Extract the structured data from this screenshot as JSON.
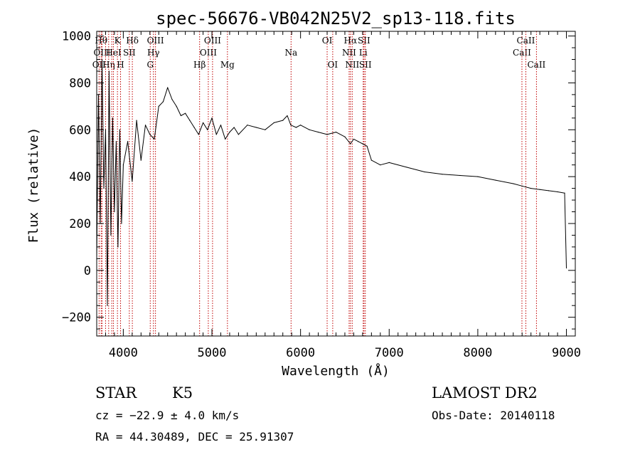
{
  "chart_data": {
    "type": "line",
    "title": "spec-56676-VB042N25V2_sp13-118.fits",
    "xlabel": "Wavelength (Å)",
    "ylabel": "Flux (relative)",
    "xlim": [
      3700,
      9100
    ],
    "ylim": [
      -280,
      1020
    ],
    "xticks": [
      4000,
      5000,
      6000,
      7000,
      8000,
      9000
    ],
    "yticks": [
      -200,
      0,
      200,
      400,
      600,
      800,
      1000
    ],
    "xtick_labels": [
      "4000",
      "5000",
      "6000",
      "7000",
      "8000",
      "9000"
    ],
    "ytick_labels": [
      "−200",
      "0",
      "200",
      "400",
      "600",
      "800",
      "1000"
    ],
    "grid": false,
    "series": [
      {
        "x": [
          3700,
          3720,
          3740,
          3760,
          3780,
          3800,
          3820,
          3840,
          3860,
          3880,
          3900,
          3920,
          3940,
          3960,
          3980,
          4000,
          4050,
          4100,
          4150,
          4200,
          4250,
          4300,
          4350,
          4400,
          4450,
          4500,
          4550,
          4600,
          4650,
          4700,
          4750,
          4800,
          4850,
          4900,
          4950,
          5000,
          5050,
          5100,
          5150,
          5200,
          5250,
          5300,
          5400,
          5500,
          5600,
          5700,
          5800,
          5850,
          5890,
          5950,
          6000,
          6100,
          6200,
          6300,
          6400,
          6500,
          6563,
          6600,
          6650,
          6700,
          6750,
          6800,
          6900,
          7000,
          7200,
          7400,
          7600,
          7800,
          8000,
          8200,
          8400,
          8500,
          8600,
          8700,
          8800,
          8900,
          8980,
          9000
        ],
        "y": [
          50,
          750,
          200,
          900,
          350,
          600,
          -150,
          850,
          150,
          650,
          250,
          550,
          100,
          600,
          200,
          450,
          550,
          380,
          640,
          470,
          620,
          580,
          560,
          700,
          720,
          780,
          730,
          700,
          660,
          670,
          640,
          610,
          580,
          630,
          600,
          650,
          580,
          620,
          560,
          590,
          610,
          580,
          620,
          610,
          600,
          630,
          640,
          660,
          620,
          610,
          620,
          600,
          590,
          580,
          590,
          570,
          540,
          560,
          550,
          540,
          530,
          470,
          450,
          460,
          440,
          420,
          410,
          405,
          400,
          385,
          370,
          360,
          350,
          345,
          340,
          335,
          330,
          10
        ]
      }
    ],
    "line_markers": [
      {
        "wavelength": 3727,
        "label": "OII",
        "row": 3
      },
      {
        "wavelength": 3750,
        "label": "Hθ",
        "row": 1
      },
      {
        "wavelength": 3760,
        "label": "OIII",
        "row": 2
      },
      {
        "wavelength": 3800,
        "label": "",
        "row": 0
      },
      {
        "wavelength": 3835,
        "label": "Hη",
        "row": 3
      },
      {
        "wavelength": 3870,
        "label": "",
        "row": 0
      },
      {
        "wavelength": 3889,
        "label": "HeI",
        "row": 2
      },
      {
        "wavelength": 3934,
        "label": "K",
        "row": 1
      },
      {
        "wavelength": 3969,
        "label": "H",
        "row": 3
      },
      {
        "wavelength": 4068,
        "label": "SII",
        "row": 2
      },
      {
        "wavelength": 4102,
        "label": "Hδ",
        "row": 1
      },
      {
        "wavelength": 4304,
        "label": "G",
        "row": 3
      },
      {
        "wavelength": 4340,
        "label": "Hγ",
        "row": 2
      },
      {
        "wavelength": 4363,
        "label": "OIII",
        "row": 1
      },
      {
        "wavelength": 4861,
        "label": "Hβ",
        "row": 3
      },
      {
        "wavelength": 4959,
        "label": "OIII",
        "row": 2
      },
      {
        "wavelength": 5007,
        "label": "OIII",
        "row": 1
      },
      {
        "wavelength": 5175,
        "label": "Mg",
        "row": 3
      },
      {
        "wavelength": 5893,
        "label": "Na",
        "row": 2
      },
      {
        "wavelength": 6300,
        "label": "OI",
        "row": 1
      },
      {
        "wavelength": 6363,
        "label": "OI",
        "row": 3
      },
      {
        "wavelength": 6548,
        "label": "NII",
        "row": 2
      },
      {
        "wavelength": 6563,
        "label": "Hα",
        "row": 1
      },
      {
        "wavelength": 6583,
        "label": "NII",
        "row": 3
      },
      {
        "wavelength": 6707,
        "label": "Li",
        "row": 2
      },
      {
        "wavelength": 6716,
        "label": "SII",
        "row": 1
      },
      {
        "wavelength": 6731,
        "label": "SII",
        "row": 3
      },
      {
        "wavelength": 8498,
        "label": "CaII",
        "row": 2
      },
      {
        "wavelength": 8542,
        "label": "CaII",
        "row": 1
      },
      {
        "wavelength": 8662,
        "label": "CaII",
        "row": 3
      }
    ]
  },
  "info": {
    "object_class": "STAR",
    "subclass": "K5",
    "survey": "LAMOST DR2",
    "redshift": "cz = −22.9 ± 4.0 km/s",
    "obs_date": "Obs-Date: 20140118",
    "coords": "RA =  44.30489, DEC =  25.91307"
  },
  "colors": {
    "spectrum": "#000000",
    "line_markers": "#c00000",
    "axes": "#000000",
    "background": "#ffffff"
  }
}
